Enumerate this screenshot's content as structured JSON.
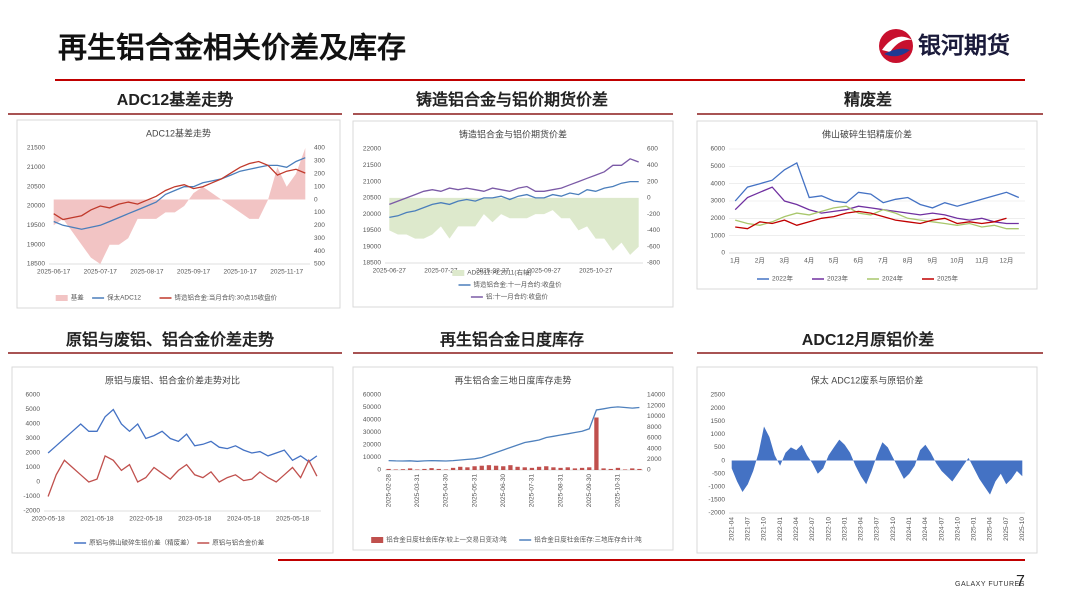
{
  "header": {
    "title": "再生铝合金相关价差及库存",
    "logo": "银河期货"
  },
  "sections": [
    "ADC12基差走势",
    "铸造铝合金与铝价期货价差",
    "精废差",
    "原铝与废铝、铝合金价差走势",
    "再生铝合金日度库存",
    "ADC12月原铝价差"
  ],
  "footer": {
    "brand": "GALAXY FUTURES",
    "page": "7"
  },
  "chart_data": [
    {
      "type": "line",
      "title": "ADC12基差走势",
      "legend": "bottom",
      "categories": [
        "2025-06-17",
        null,
        null,
        null,
        null,
        "2025-07-17",
        null,
        null,
        null,
        null,
        "2025-08-17",
        null,
        null,
        null,
        null,
        "2025-09-17",
        null,
        null,
        null,
        null,
        "2025-10-17",
        null,
        null,
        null,
        null,
        "2025-11-17",
        null,
        null
      ],
      "ylim": [
        18500,
        21500
      ],
      "yticks": [
        18500,
        19000,
        19500,
        20000,
        20500,
        21000,
        21500
      ],
      "y2lim": [
        -500,
        400
      ],
      "y2ticks": [
        400,
        300,
        200,
        100,
        0,
        {
          "value": -100,
          "label": "100"
        },
        {
          "value": -200,
          "label": "200"
        },
        {
          "value": -300,
          "label": "300"
        },
        {
          "value": -400,
          "label": "400"
        },
        {
          "value": -500,
          "label": "500"
        }
      ],
      "series": [
        {
          "name": "基差",
          "color": "#f2c4c4",
          "kind": "area",
          "axis": "y2",
          "values": [
            -200,
            -150,
            -250,
            -350,
            -450,
            -500,
            -350,
            -350,
            -300,
            -150,
            -150,
            -150,
            -100,
            -100,
            -50,
            50,
            100,
            50,
            0,
            -50,
            -100,
            -150,
            -150,
            0,
            250,
            100,
            200,
            400
          ]
        },
        {
          "name": "保太ADC12",
          "color": "#4a7ebb",
          "kind": "line",
          "values": [
            19600,
            19500,
            19450,
            19400,
            19450,
            19500,
            19600,
            19700,
            19800,
            19900,
            20000,
            20100,
            20300,
            20400,
            20500,
            20500,
            20600,
            20650,
            20700,
            20800,
            20900,
            20950,
            21000,
            21050,
            21050,
            21000,
            21150,
            21250
          ]
        },
        {
          "name": "铸造铝合金:当月合约:30点15收盘价",
          "color": "#c0392b",
          "kind": "line",
          "values": [
            19800,
            19650,
            19700,
            19750,
            19900,
            20000,
            19950,
            20050,
            20100,
            20050,
            20150,
            20250,
            20400,
            20500,
            20550,
            20450,
            20500,
            20600,
            20700,
            20850,
            21000,
            21100,
            21150,
            21050,
            20800,
            20900,
            20950,
            20850
          ]
        }
      ]
    },
    {
      "type": "line",
      "title": "铸造铝合金与铝价期货价差",
      "legend": "bottom",
      "categories": [
        "2025-06-27",
        null,
        null,
        null,
        null,
        null,
        "2025-07-27",
        null,
        null,
        null,
        null,
        null,
        "2025-08-27",
        null,
        null,
        null,
        null,
        null,
        "2025-09-27",
        null,
        null,
        null,
        null,
        null,
        "2025-10-27",
        null,
        null,
        null,
        null,
        null
      ],
      "ylim": [
        18500,
        22000
      ],
      "yticks": [
        18500,
        19000,
        19500,
        20000,
        20500,
        21000,
        21500,
        22000
      ],
      "y2lim": [
        -800,
        600
      ],
      "y2ticks": [
        -800,
        -600,
        -400,
        -200,
        0,
        200,
        400,
        600
      ],
      "series": [
        {
          "name": "AD2511-AL2511(右轴)",
          "color": "#dde9cc",
          "kind": "area",
          "axis": "y2",
          "values": [
            -400,
            -450,
            -450,
            -500,
            -500,
            -450,
            -350,
            -500,
            -350,
            -350,
            -350,
            -200,
            -300,
            -200,
            -250,
            -250,
            -250,
            -200,
            -200,
            -150,
            -250,
            -250,
            -400,
            -350,
            -500,
            -500,
            -650,
            -550,
            -700,
            -600
          ]
        },
        {
          "name": "铸造铝合金:十一月合约:收盘价",
          "color": "#4a7ebb",
          "kind": "line",
          "values": [
            19900,
            19950,
            20050,
            20100,
            20200,
            20300,
            20350,
            20300,
            20400,
            20450,
            20400,
            20500,
            20500,
            20550,
            20450,
            20550,
            20600,
            20500,
            20500,
            20600,
            20550,
            20650,
            20600,
            20750,
            20700,
            20800,
            20850,
            20950,
            21000,
            21000
          ]
        },
        {
          "name": "铝:十一月合约:收盘价",
          "color": "#7b5aa6",
          "kind": "line",
          "values": [
            20300,
            20400,
            20500,
            20600,
            20700,
            20750,
            20700,
            20800,
            20750,
            20800,
            20750,
            20700,
            20800,
            20750,
            20700,
            20800,
            20850,
            20700,
            20700,
            20750,
            20800,
            20900,
            21000,
            21100,
            21200,
            21300,
            21500,
            21500,
            21700,
            21600
          ]
        }
      ]
    },
    {
      "type": "line",
      "title": "佛山破碎生铝精废价差",
      "legend": "bottom",
      "grid": true,
      "categories": [
        "1月",
        null,
        "2月",
        null,
        "3月",
        null,
        "4月",
        null,
        "5月",
        null,
        "6月",
        null,
        "7月",
        null,
        "8月",
        null,
        "9月",
        null,
        "10月",
        null,
        "11月",
        null,
        "12月",
        null
      ],
      "ylim": [
        0,
        6000
      ],
      "yticks": [
        0,
        1000,
        2000,
        3000,
        4000,
        5000,
        6000
      ],
      "series": [
        {
          "name": "2022年",
          "color": "#4472c4",
          "values": [
            3000,
            3800,
            4000,
            4200,
            4800,
            5200,
            3200,
            3300,
            3000,
            2900,
            3500,
            3400,
            2900,
            3100,
            3200,
            2800,
            2600,
            2900,
            2700,
            2900,
            3100,
            3300,
            3500,
            3200
          ]
        },
        {
          "name": "2023年",
          "color": "#7030a0",
          "values": [
            2500,
            3200,
            3500,
            3800,
            3000,
            2800,
            2500,
            2300,
            2400,
            2500,
            2700,
            2600,
            2500,
            2400,
            2300,
            2200,
            2300,
            2200,
            2000,
            1900,
            2000,
            1800,
            1700,
            1700
          ]
        },
        {
          "name": "2024年",
          "color": "#a9c76c",
          "values": [
            1900,
            1700,
            1600,
            1800,
            2100,
            2300,
            2200,
            2400,
            2600,
            2700,
            2300,
            2200,
            2500,
            2300,
            2000,
            1900,
            1800,
            1700,
            1600,
            1700,
            1500,
            1600,
            1400,
            1400
          ]
        },
        {
          "name": "2025年",
          "color": "#c00000",
          "values": [
            1500,
            1400,
            1800,
            1700,
            1900,
            1600,
            1800,
            2000,
            2100,
            2300,
            2400,
            2300,
            2100,
            1900,
            1800,
            1700,
            1900,
            2000,
            1700,
            1800,
            1700,
            1800,
            2000,
            null
          ]
        }
      ]
    },
    {
      "type": "line",
      "title": "原铝与废铝、铝合金价差走势对比",
      "legend": "bottom",
      "categories": [
        "2020-05-18",
        null,
        null,
        null,
        null,
        null,
        "2021-05-18",
        null,
        null,
        null,
        null,
        null,
        "2022-05-18",
        null,
        null,
        null,
        null,
        null,
        "2023-05-18",
        null,
        null,
        null,
        null,
        null,
        "2024-05-18",
        null,
        null,
        null,
        null,
        null,
        "2025-05-18",
        null,
        null,
        null
      ],
      "ylim": [
        -2000,
        6000
      ],
      "yticks": [
        -2000,
        -1000,
        0,
        1000,
        2000,
        3000,
        4000,
        5000,
        6000
      ],
      "series": [
        {
          "name": "原铝与佛山破碎生铝价差（精废差）",
          "color": "#4472c4",
          "values": [
            2000,
            2500,
            3000,
            3500,
            4000,
            3500,
            3500,
            4500,
            5000,
            4000,
            3500,
            4000,
            3000,
            3200,
            3500,
            3000,
            2800,
            3300,
            2500,
            2600,
            2800,
            2400,
            2300,
            2500,
            2200,
            2000,
            2100,
            1800,
            2000,
            2200,
            1500,
            1800,
            1400,
            1800
          ]
        },
        {
          "name": "原铝与铝合金价差",
          "color": "#c0504d",
          "values": [
            -1000,
            500,
            1500,
            1000,
            500,
            0,
            200,
            1800,
            1500,
            800,
            1200,
            0,
            300,
            1000,
            600,
            200,
            800,
            1200,
            500,
            300,
            700,
            0,
            300,
            500,
            100,
            200,
            700,
            300,
            0,
            500,
            1000,
            300,
            1500,
            400
          ]
        }
      ]
    },
    {
      "type": "line",
      "title": "再生铝合金三地日度库存走势",
      "legend": "bottom",
      "xlabel_rotated": true,
      "categories": [
        "2025-02-28",
        null,
        null,
        null,
        "2025-03-31",
        null,
        null,
        null,
        "2025-04-30",
        null,
        null,
        null,
        "2025-05-31",
        null,
        null,
        null,
        "2025-06-30",
        null,
        null,
        null,
        "2025-07-31",
        null,
        null,
        null,
        "2025-08-31",
        null,
        null,
        null,
        "2025-09-30",
        null,
        null,
        null,
        "2025-10-31",
        null,
        null,
        null
      ],
      "ylim": [
        0,
        60000
      ],
      "yticks": [
        0,
        10000,
        20000,
        30000,
        40000,
        50000,
        60000
      ],
      "y2lim": [
        0,
        14000
      ],
      "y2ticks": [
        0,
        2000,
        4000,
        6000,
        8000,
        10000,
        12000,
        14000
      ],
      "series": [
        {
          "name": "铝合金日度社会库存:较上一交易日变动:吨",
          "color": "#c0504d",
          "kind": "bar",
          "axis": "y2",
          "values": [
            200,
            100,
            150,
            300,
            100,
            200,
            350,
            200,
            100,
            400,
            600,
            500,
            700,
            800,
            900,
            800,
            700,
            900,
            600,
            500,
            400,
            600,
            700,
            500,
            400,
            500,
            300,
            400,
            500,
            9800,
            300,
            200,
            400,
            100,
            300,
            200
          ]
        },
        {
          "name": "铝合金日度社会库存:三地库存合计:吨",
          "color": "#4f81bd",
          "kind": "line",
          "values": [
            7500,
            7300,
            7200,
            7400,
            7000,
            7300,
            7500,
            7400,
            7200,
            7500,
            8000,
            8500,
            9000,
            10000,
            12000,
            14000,
            16000,
            18000,
            20000,
            22000,
            23000,
            24000,
            26000,
            27000,
            28000,
            29000,
            30000,
            31000,
            33000,
            48000,
            49000,
            50000,
            50500,
            50000,
            49500,
            50000
          ]
        }
      ]
    },
    {
      "type": "area",
      "title": "保太 ADC12废系与原铝价差",
      "color": "#4472c4",
      "xlabel_rotated": true,
      "categories": [
        "2021-04",
        null,
        null,
        "2021-07",
        null,
        null,
        "2021-10",
        null,
        null,
        "2022-01",
        null,
        null,
        "2022-04",
        null,
        null,
        "2022-07",
        null,
        null,
        "2022-10",
        null,
        null,
        "2023-01",
        null,
        null,
        "2023-04",
        null,
        null,
        "2023-07",
        null,
        null,
        "2023-10",
        null,
        null,
        "2024-01",
        null,
        null,
        "2024-04",
        null,
        null,
        "2024-07",
        null,
        null,
        "2024-10",
        null,
        null,
        "2025-01",
        null,
        null,
        "2025-04",
        null,
        null,
        "2025-07",
        null,
        null,
        "2025-10"
      ],
      "ylim": [
        -2000,
        2500
      ],
      "yticks": [
        -2000,
        -1500,
        -1000,
        -500,
        0,
        500,
        1000,
        1500,
        2000,
        2500
      ],
      "values": [
        -300,
        -800,
        -1200,
        -900,
        -400,
        300,
        1300,
        900,
        200,
        -200,
        300,
        500,
        400,
        600,
        200,
        -100,
        -500,
        -300,
        200,
        500,
        800,
        600,
        300,
        -200,
        -600,
        -900,
        -400,
        200,
        700,
        500,
        100,
        -300,
        -700,
        -500,
        -200,
        400,
        600,
        300,
        -100,
        -400,
        -600,
        -800,
        -500,
        -200,
        100,
        -300,
        -700,
        -1000,
        -1300,
        -800,
        -500,
        -900,
        -700,
        -400,
        -600
      ]
    }
  ]
}
